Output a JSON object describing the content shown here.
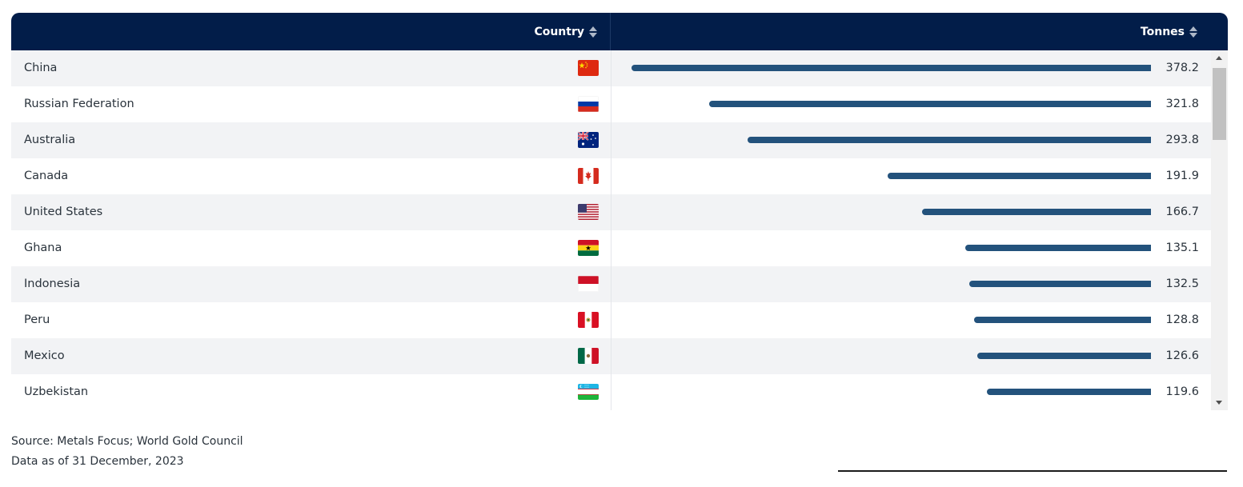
{
  "header": {
    "country_label": "Country",
    "tonnes_label": "Tonnes"
  },
  "chart_data": {
    "type": "bar",
    "orientation": "horizontal",
    "categories": [
      "China",
      "Russian Federation",
      "Australia",
      "Canada",
      "United States",
      "Ghana",
      "Indonesia",
      "Peru",
      "Mexico",
      "Uzbekistan"
    ],
    "values": [
      378.2,
      321.8,
      293.8,
      191.9,
      166.7,
      135.1,
      132.5,
      128.8,
      126.6,
      119.6
    ],
    "value_labels": [
      "378.2",
      "321.8",
      "293.8",
      "191.9",
      "166.7",
      "135.1",
      "132.5",
      "128.8",
      "126.6",
      "119.6"
    ],
    "flag_icons": [
      "china-flag-icon",
      "russia-flag-icon",
      "australia-flag-icon",
      "canada-flag-icon",
      "usa-flag-icon",
      "ghana-flag-icon",
      "indonesia-flag-icon",
      "peru-flag-icon",
      "mexico-flag-icon",
      "uzbekistan-flag-icon"
    ],
    "bar_color": "#23527c",
    "xlim": [
      0,
      378.2
    ]
  },
  "footer": {
    "source": "Source: Metals Focus; World Gold Council",
    "date": "Data as of 31 December, 2023"
  },
  "colors": {
    "header_bg": "#021d49",
    "row_alt": "#f2f3f5"
  }
}
